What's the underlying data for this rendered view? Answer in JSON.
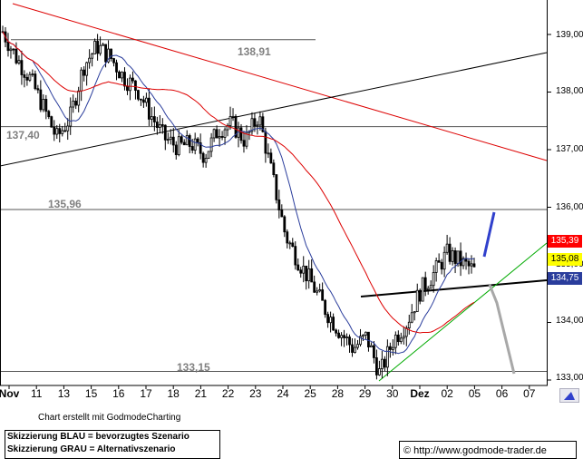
{
  "chart_data": {
    "type": "candlestick",
    "y_range": [
      132.9,
      139.5
    ],
    "y_ticks": [
      "139,00",
      "138,00",
      "137,00",
      "136,00",
      "135,00",
      "134,00",
      "133,00"
    ],
    "x_categories": [
      "Nov",
      "11",
      "13",
      "15",
      "16",
      "17",
      "18",
      "21",
      "22",
      "23",
      "24",
      "25",
      "28",
      "29",
      "30",
      "Dez",
      "02",
      "05",
      "06",
      "07"
    ],
    "price_path": [
      [
        0,
        139.05
      ],
      [
        0.5,
        138.6
      ],
      [
        1,
        138.25
      ],
      [
        1.5,
        137.75
      ],
      [
        2,
        137.2
      ],
      [
        2.5,
        137.55
      ],
      [
        3,
        138.45
      ],
      [
        3.5,
        138.8
      ],
      [
        4,
        138.6
      ],
      [
        4.5,
        138.25
      ],
      [
        5,
        138.05
      ],
      [
        5.5,
        137.6
      ],
      [
        6,
        137.2
      ],
      [
        6.5,
        137.05
      ],
      [
        7,
        137.1
      ],
      [
        7.5,
        136.9
      ],
      [
        8,
        137.35
      ],
      [
        8.5,
        137.45
      ],
      [
        9,
        137.15
      ],
      [
        9.5,
        137.6
      ],
      [
        10,
        136.55
      ],
      [
        10.5,
        135.5
      ],
      [
        11,
        135.05
      ],
      [
        11.5,
        134.65
      ],
      [
        12,
        134.2
      ],
      [
        12.5,
        133.85
      ],
      [
        13,
        133.55
      ],
      [
        13.5,
        133.75
      ],
      [
        14,
        133.1
      ],
      [
        14.5,
        133.7
      ],
      [
        15,
        134.0
      ],
      [
        15.5,
        134.55
      ],
      [
        16,
        134.85
      ],
      [
        16.5,
        135.2
      ],
      [
        17,
        135.05
      ],
      [
        17.5,
        134.9
      ]
    ],
    "overlays": {
      "horizontal_levels": [
        {
          "label": "138,91",
          "value": 138.91
        },
        {
          "label": "137,40",
          "value": 137.4
        },
        {
          "label": "135,96",
          "value": 135.96
        },
        {
          "label": "133,15",
          "value": 133.15
        }
      ],
      "price_tags": [
        {
          "label": "135,39",
          "value": 135.39,
          "color": "#ff0000",
          "text_color": "#ffffff"
        },
        {
          "label": "135,08",
          "value": 135.08,
          "color": "#ffff00",
          "text_color": "#000000"
        },
        {
          "label": "134,75",
          "value": 134.75,
          "color": "#2a3d9c",
          "text_color": "#ffffff"
        }
      ],
      "colors": {
        "candles": "#000000",
        "ma_red": "#dd0000",
        "ma_blue": "#2a3d9c",
        "support_green": "#00aa00",
        "trend_red": "#dd0000",
        "scenario_blue": "#3040cc",
        "scenario_grey": "#a8a8a8"
      }
    }
  },
  "footer": {
    "credit": "Chart erstellt mit GodmodeCharting",
    "legend_blue": "Skizzierung BLAU = bevorzugtes Szenario",
    "legend_grey": "Skizzierung GRAU = Alternativszenario",
    "url": "© http://www.godmode-trader.de"
  }
}
